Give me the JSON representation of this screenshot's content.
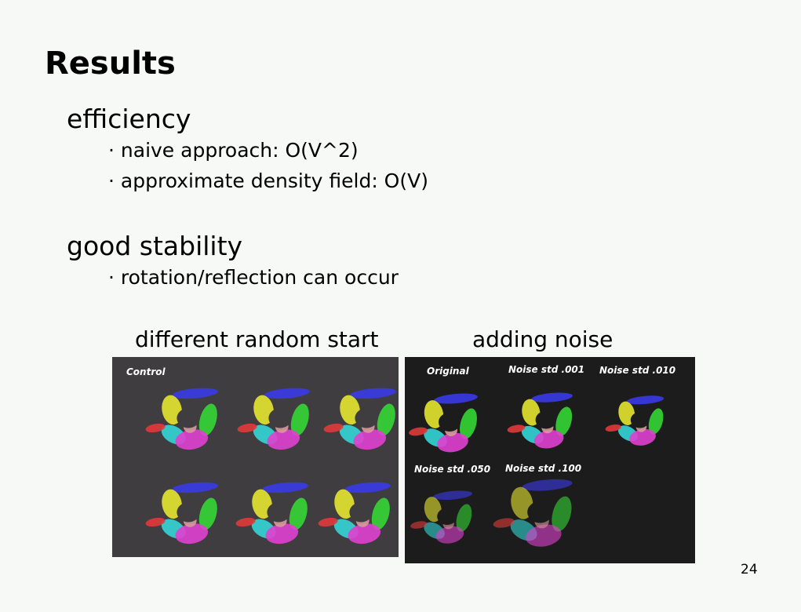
{
  "title": "Results",
  "sections": [
    {
      "heading": "efficiency",
      "bullets": [
        "naive approach: O(V^2)",
        "approximate density field: O(V)"
      ]
    },
    {
      "heading": "good stability",
      "bullets": [
        "rotation/reflection can occur"
      ]
    }
  ],
  "figures": [
    {
      "caption": "different random start",
      "labels": [
        "Control"
      ]
    },
    {
      "caption": "adding noise",
      "labels": [
        "Original",
        "Noise std .001",
        "Noise std .010",
        "Noise std .050",
        "Noise std .100"
      ]
    }
  ],
  "page_number": "24"
}
